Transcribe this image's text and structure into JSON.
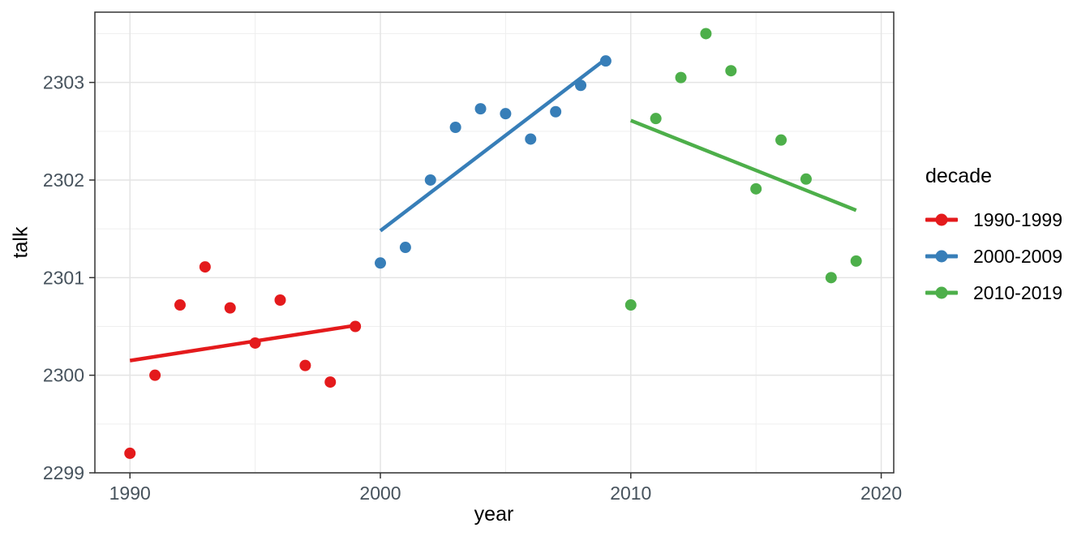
{
  "figure": {
    "x_axis_label": "year",
    "y_axis_label": "talk"
  },
  "legend": {
    "title": "decade",
    "entries": [
      {
        "label": "1990-1999",
        "color": "#E41A1C"
      },
      {
        "label": "2000-2009",
        "color": "#377EB8"
      },
      {
        "label": "2010-2019",
        "color": "#4DAF4A"
      }
    ]
  },
  "chart_data": {
    "type": "scatter",
    "title": "",
    "xlabel": "year",
    "ylabel": "talk",
    "xlim": [
      1988.6,
      2020.5
    ],
    "ylim": [
      2299,
      2303.72
    ],
    "x_ticks": [
      1990,
      2000,
      2010,
      2020
    ],
    "y_ticks": [
      2299,
      2300,
      2301,
      2302,
      2303
    ],
    "x_minor_ticks": [
      1995,
      2005,
      2015
    ],
    "y_minor_ticks": [
      2299.5,
      2300.5,
      2301.5,
      2302.5,
      2303.5
    ],
    "grid": true,
    "legend_position": "right",
    "style": {
      "panel_background": "#ffffff",
      "panel_border": "#333333",
      "major_grid": "#e4e4e4",
      "minor_grid": "#efefef",
      "tick_color": "#333333",
      "tick_label_color": "#47535d",
      "point_radius": 7,
      "trend_width": 4.5
    },
    "series": [
      {
        "name": "1990-1999",
        "color": "#E41A1C",
        "x": [
          1990,
          1991,
          1992,
          1993,
          1994,
          1995,
          1996,
          1997,
          1998,
          1999
        ],
        "y": [
          2299.2,
          2300.0,
          2300.72,
          2301.11,
          2300.69,
          2300.33,
          2300.77,
          2300.1,
          2299.93,
          2300.5
        ],
        "trend": {
          "x": [
            1990,
            1999
          ],
          "y": [
            2300.15,
            2300.51
          ]
        }
      },
      {
        "name": "2000-2009",
        "color": "#377EB8",
        "x": [
          2000,
          2001,
          2002,
          2003,
          2004,
          2005,
          2006,
          2007,
          2008,
          2009
        ],
        "y": [
          2301.15,
          2301.31,
          2302.0,
          2302.54,
          2302.73,
          2302.68,
          2302.42,
          2302.7,
          2302.97,
          2303.22
        ],
        "trend": {
          "x": [
            2000,
            2009
          ],
          "y": [
            2301.48,
            2303.24
          ]
        }
      },
      {
        "name": "2010-2019",
        "color": "#4DAF4A",
        "x": [
          2010,
          2011,
          2012,
          2013,
          2014,
          2015,
          2016,
          2017,
          2018,
          2019
        ],
        "y": [
          2300.72,
          2302.63,
          2303.05,
          2303.5,
          2303.12,
          2301.91,
          2302.41,
          2302.01,
          2301.0,
          2301.17
        ],
        "trend": {
          "x": [
            2010,
            2019
          ],
          "y": [
            2302.61,
            2301.69
          ]
        }
      }
    ]
  }
}
